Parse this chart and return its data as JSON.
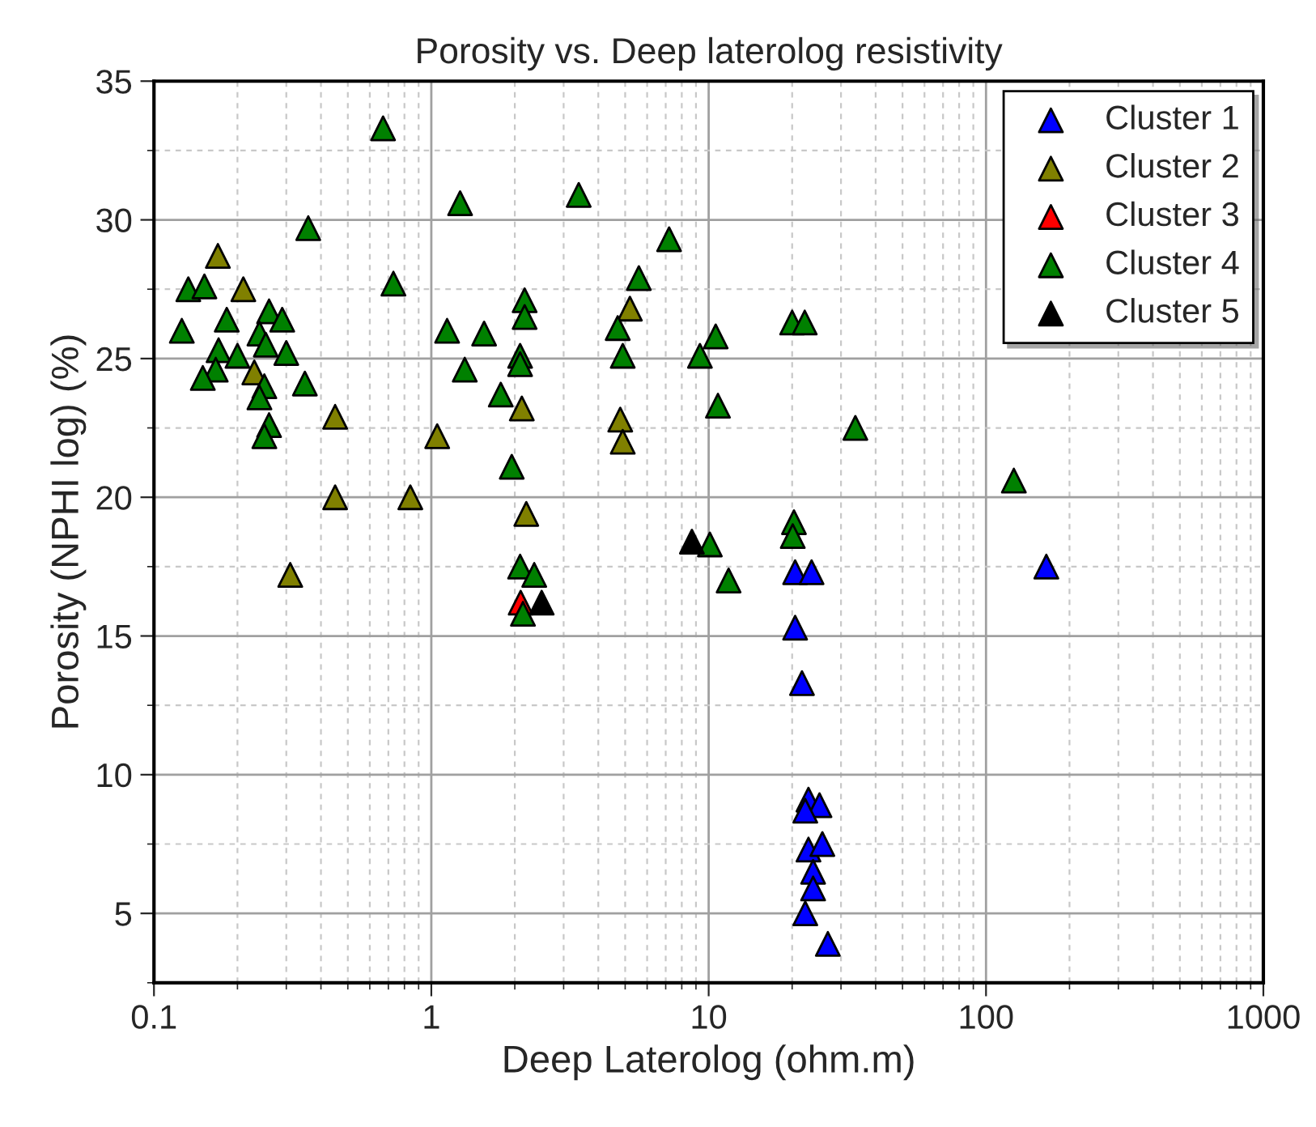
{
  "chart_data": {
    "type": "scatter",
    "title": "Porosity vs. Deep laterolog resistivity",
    "xlabel": "Deep Laterolog (ohm.m)",
    "ylabel": "Porosity (NPHI log) (%)",
    "log": "x",
    "xlim": [
      0.1,
      1000
    ],
    "xticks": [
      0.1,
      1,
      10,
      100,
      1000
    ],
    "ylim": [
      2.5,
      35
    ],
    "yticks": [
      5,
      10,
      15,
      20,
      25,
      30,
      35
    ],
    "grid": true,
    "legend": "top right",
    "marker": "triangle",
    "series": [
      {
        "name": "Cluster 1",
        "color": "#0000ff",
        "x": [
          20.5,
          23.5,
          20.5,
          21.7,
          22.9,
          25.1,
          22.3,
          22.9,
          25.7,
          23.8,
          23.8,
          22.3,
          26.9,
          165
        ],
        "values": [
          17.3,
          17.3,
          15.3,
          13.3,
          9.1,
          8.9,
          8.7,
          7.3,
          7.5,
          6.5,
          5.9,
          5.0,
          3.9,
          17.5
        ]
      },
      {
        "name": "Cluster 2",
        "color": "#808000",
        "x": [
          0.17,
          0.21,
          0.23,
          0.45,
          1.05,
          0.45,
          0.84,
          0.31,
          5.2,
          2.12,
          4.8,
          4.9,
          2.2
        ],
        "values": [
          28.7,
          27.5,
          24.5,
          22.9,
          22.2,
          20.0,
          20.0,
          17.2,
          26.8,
          23.2,
          22.8,
          22.0,
          19.4
        ]
      },
      {
        "name": "Cluster 3",
        "color": "#ff0000",
        "x": [
          2.1
        ],
        "values": [
          16.2
        ]
      },
      {
        "name": "Cluster 4",
        "color": "#008000",
        "x": [
          0.67,
          1.27,
          0.36,
          0.133,
          0.152,
          0.73,
          0.26,
          0.29,
          0.183,
          0.126,
          1.14,
          0.24,
          0.253,
          0.171,
          0.3,
          0.2,
          0.167,
          1.32,
          0.15,
          0.35,
          0.25,
          0.24,
          0.26,
          0.25,
          3.4,
          7.2,
          5.6,
          2.17,
          2.17,
          4.7,
          1.55,
          10.6,
          2.09,
          2.09,
          4.9,
          9.3,
          1.78,
          10.8,
          1.95,
          2.09,
          2.35,
          10.1,
          11.8,
          2.14,
          20,
          22.2,
          33.8,
          126,
          20.3,
          20.1
        ],
        "values": [
          33.3,
          30.6,
          29.7,
          27.5,
          27.6,
          27.7,
          26.7,
          26.4,
          26.4,
          26.0,
          26.0,
          25.9,
          25.5,
          25.3,
          25.2,
          25.1,
          24.6,
          24.6,
          24.3,
          24.1,
          24.0,
          23.6,
          22.6,
          22.2,
          30.9,
          29.3,
          27.9,
          27.1,
          26.5,
          26.1,
          25.9,
          25.8,
          25.1,
          24.8,
          25.1,
          25.1,
          23.7,
          23.3,
          21.1,
          17.5,
          17.2,
          18.3,
          17.0,
          15.8,
          26.3,
          26.3,
          22.5,
          20.6,
          19.1,
          18.6
        ]
      },
      {
        "name": "Cluster 5",
        "color": "#000000",
        "x": [
          8.7,
          2.5
        ],
        "values": [
          18.4,
          16.2
        ]
      }
    ]
  }
}
